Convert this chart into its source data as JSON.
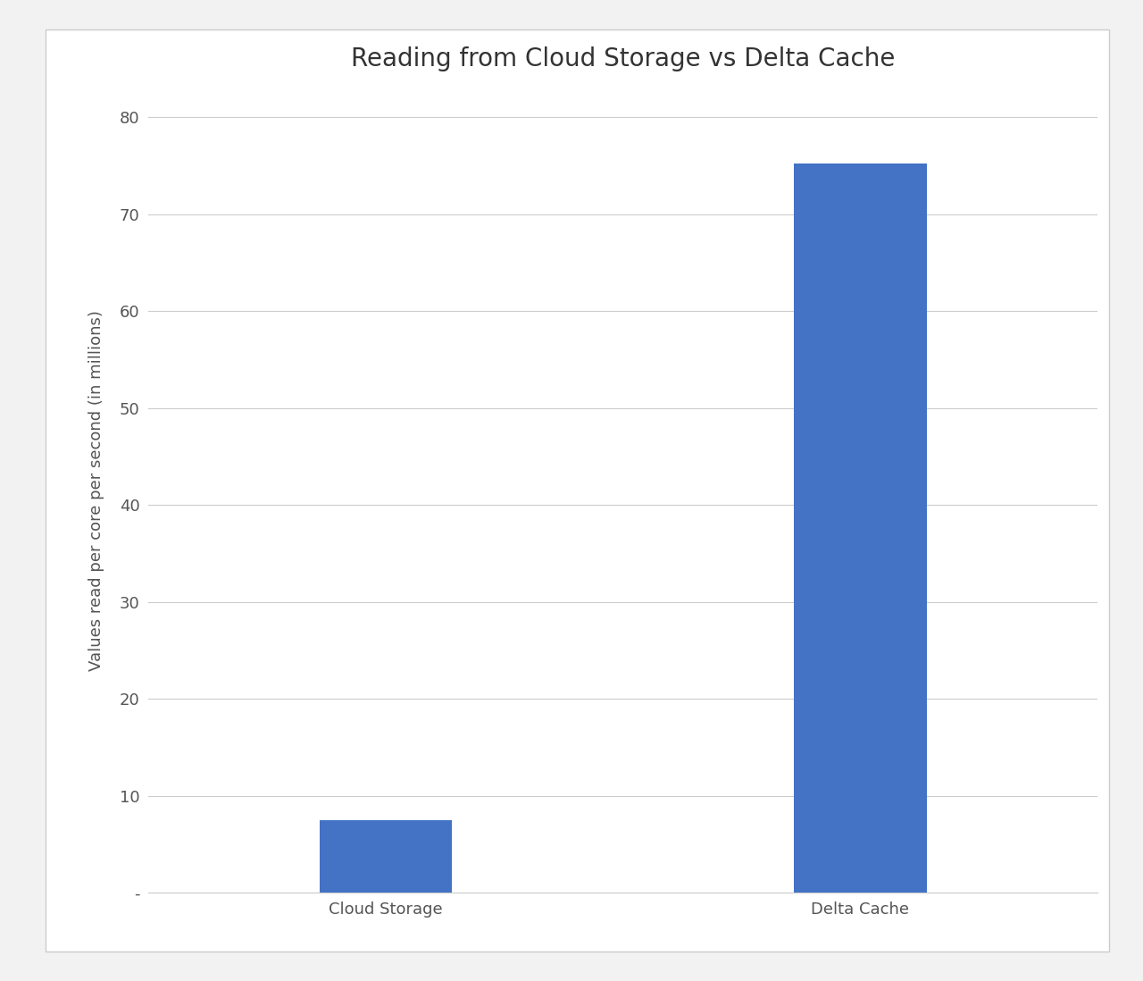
{
  "title": "Reading from Cloud Storage vs Delta Cache",
  "categories": [
    "Cloud Storage",
    "Delta Cache"
  ],
  "values": [
    7.5,
    75.2
  ],
  "bar_color": "#4472C4",
  "ylabel": "Values read per core per second (in millions)",
  "ylim": [
    0,
    83
  ],
  "yticks": [
    0,
    10,
    20,
    30,
    40,
    50,
    60,
    70,
    80
  ],
  "ytick_labels": [
    "-",
    "10",
    "20",
    "30",
    "40",
    "50",
    "60",
    "70",
    "80"
  ],
  "background_color": "#ffffff",
  "outer_bg": "#f2f2f2",
  "grid_color": "#cccccc",
  "title_fontsize": 20,
  "label_fontsize": 13,
  "tick_fontsize": 13,
  "bar_width": 0.28,
  "title_color": "#333333",
  "tick_color": "#555555"
}
